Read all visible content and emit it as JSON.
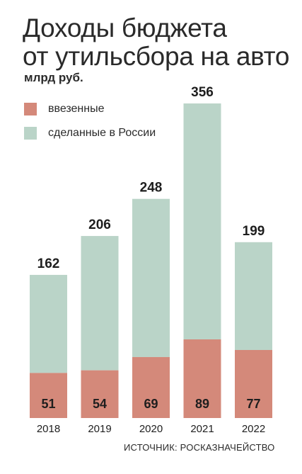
{
  "chart_data": {
    "type": "bar",
    "stacked": true,
    "title_lines": [
      "Доходы бюджета",
      "от утильсбора на авто"
    ],
    "unit": "млрд руб.",
    "categories": [
      "2018",
      "2019",
      "2020",
      "2021",
      "2022"
    ],
    "series": [
      {
        "name": "ввезенные",
        "color": "#d4897a",
        "values": [
          51,
          54,
          69,
          89,
          77
        ]
      },
      {
        "name": "сделанные в России",
        "color": "#bad4c8",
        "values": [
          111,
          152,
          179,
          267,
          122
        ]
      }
    ],
    "totals": [
      162,
      206,
      248,
      356,
      199
    ],
    "ylim": [
      0,
      356
    ],
    "grid": false,
    "legend_position": "top-left",
    "source": "ИСТОЧНИК: РОСКАЗНАЧЕЙСТВО"
  }
}
